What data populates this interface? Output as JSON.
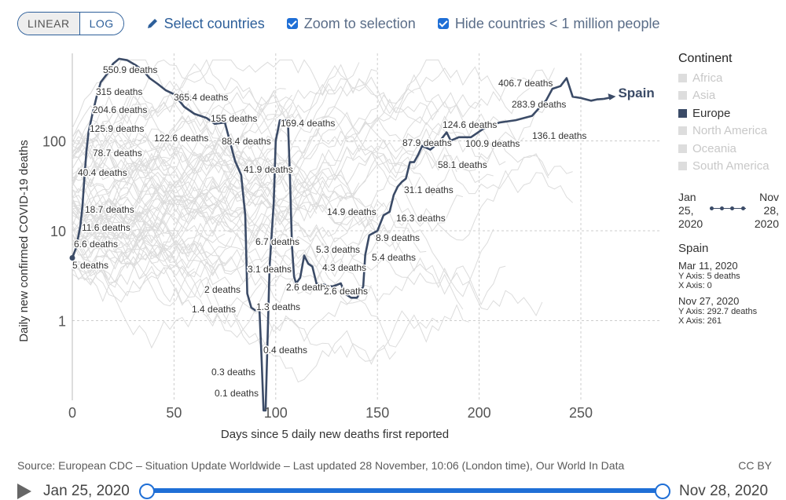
{
  "toolbar": {
    "scale_linear": "LINEAR",
    "scale_log": "LOG",
    "select_countries": "Select countries",
    "zoom_to_selection": "Zoom to selection",
    "hide_small": "Hide countries < 1 million people"
  },
  "legend": {
    "title": "Continent",
    "items": [
      {
        "label": "Africa",
        "active": false
      },
      {
        "label": "Asia",
        "active": false
      },
      {
        "label": "Europe",
        "active": true
      },
      {
        "label": "North America",
        "active": false
      },
      {
        "label": "Oceania",
        "active": false
      },
      {
        "label": "South America",
        "active": false
      }
    ]
  },
  "time_range": {
    "start": "Jan\n25,\n2020",
    "end": "Nov\n28,\n2020"
  },
  "tooltip": {
    "country": "Spain",
    "start_date": "Mar 11, 2020",
    "start_y": "Y Axis: 5 deaths",
    "start_x": "X Axis: 0",
    "end_date": "Nov 27, 2020",
    "end_y": "Y Axis: 292.7 deaths",
    "end_x": "X Axis: 261"
  },
  "footer": {
    "source": "Source: European CDC – Situation Update Worldwide – Last updated 28 November, 10:06 (London time), Our World In Data",
    "license": "CC BY"
  },
  "timeline": {
    "start": "Jan 25, 2020",
    "end": "Nov 28, 2020"
  },
  "colors": {
    "highlight": "#3b4b67",
    "background_lines": "#dcdcdc",
    "accent": "#1f6fd6"
  },
  "chart_data": {
    "type": "line",
    "scale": "log",
    "xlabel": "Days since 5 daily new deaths first reported",
    "ylabel": "Daily new confirmed COVID-19 deaths",
    "xlim": [
      0,
      265
    ],
    "ylim": [
      0.1,
      900
    ],
    "xticks": [
      0,
      50,
      100,
      150,
      200,
      250
    ],
    "yticks": [
      1,
      10,
      100
    ],
    "grid": true,
    "series": [
      {
        "name": "Spain",
        "points": [
          [
            0,
            5
          ],
          [
            2,
            6.6
          ],
          [
            4,
            11.6
          ],
          [
            5,
            18.7
          ],
          [
            6,
            40.4
          ],
          [
            7,
            78.7
          ],
          [
            8,
            125.9
          ],
          [
            10,
            204.6
          ],
          [
            12,
            315
          ],
          [
            14,
            450
          ],
          [
            17,
            550.9
          ],
          [
            20,
            720
          ],
          [
            23,
            820
          ],
          [
            27,
            790
          ],
          [
            31,
            700
          ],
          [
            35,
            600
          ],
          [
            38,
            500
          ],
          [
            42,
            430
          ],
          [
            46,
            365.4
          ],
          [
            50,
            330
          ],
          [
            55,
            240
          ],
          [
            60,
            200
          ],
          [
            66,
            180
          ],
          [
            70,
            155
          ],
          [
            75,
            160
          ],
          [
            78,
            88.4
          ],
          [
            80,
            60
          ],
          [
            83,
            41.9
          ],
          [
            85,
            15
          ],
          [
            86,
            2
          ],
          [
            88,
            1.4
          ],
          [
            90,
            1.3
          ],
          [
            92,
            1.3
          ],
          [
            93,
            0.4
          ],
          [
            94,
            0.1
          ],
          [
            95,
            0.1
          ],
          [
            97,
            4
          ],
          [
            99,
            20
          ],
          [
            100,
            100
          ],
          [
            102,
            169.4
          ],
          [
            104,
            169.4
          ],
          [
            106,
            169.4
          ],
          [
            107,
            40
          ],
          [
            108,
            6.7
          ],
          [
            109,
            3.1
          ],
          [
            110,
            2.6
          ],
          [
            112,
            3
          ],
          [
            114,
            5.3
          ],
          [
            116,
            4.3
          ],
          [
            118,
            4
          ],
          [
            120,
            2.6
          ],
          [
            124,
            2.5
          ],
          [
            128,
            2.4
          ],
          [
            132,
            2.6
          ],
          [
            134,
            2
          ],
          [
            137,
            1.8
          ],
          [
            140,
            1.8
          ],
          [
            143,
            2.4
          ],
          [
            144,
            5.4
          ],
          [
            146,
            8.9
          ],
          [
            150,
            10
          ],
          [
            153,
            14.9
          ],
          [
            156,
            16.3
          ],
          [
            158,
            25
          ],
          [
            160,
            31.1
          ],
          [
            162,
            35
          ],
          [
            164,
            38
          ],
          [
            166,
            58.1
          ],
          [
            168,
            58
          ],
          [
            170,
            70
          ],
          [
            172,
            87.9
          ],
          [
            176,
            80
          ],
          [
            180,
            95
          ],
          [
            184,
            124.6
          ],
          [
            186,
            100.9
          ],
          [
            188,
            105
          ],
          [
            190,
            110
          ],
          [
            196,
            110
          ],
          [
            202,
            136.1
          ],
          [
            210,
            160
          ],
          [
            218,
            170
          ],
          [
            226,
            190
          ],
          [
            233,
            283.9
          ],
          [
            236,
            380
          ],
          [
            240,
            406.7
          ],
          [
            243,
            500
          ],
          [
            246,
            310
          ],
          [
            250,
            300
          ],
          [
            255,
            280
          ],
          [
            258,
            290
          ],
          [
            261,
            292.7
          ]
        ]
      }
    ],
    "annotations": [
      "550.9 deaths",
      "315 deaths",
      "204.6 deaths",
      "125.9 deaths",
      "78.7 deaths",
      "40.4 deaths",
      "18.7 deaths",
      "11.6 deaths",
      "6.6 deaths",
      "5 deaths",
      "365.4 deaths",
      "122.6 deaths",
      "155 deaths",
      "88.4 deaths",
      "41.9 deaths",
      "169.4 deaths",
      "6.7 deaths",
      "3.1 deaths",
      "2 deaths",
      "2.6 deaths",
      "1.4 deaths",
      "1.3 deaths",
      "0.4 deaths",
      "0.3 deaths",
      "0.1 deaths",
      "5.3 deaths",
      "4.3 deaths",
      "2.6 deaths",
      "14.9 deaths",
      "16.3 deaths",
      "8.9 deaths",
      "5.4 deaths",
      "31.1 deaths",
      "58.1 deaths",
      "87.9 deaths",
      "124.6 deaths",
      "100.9 deaths",
      "136.1 deaths",
      "406.7 deaths",
      "283.9 deaths"
    ],
    "end_label": "Spain"
  }
}
